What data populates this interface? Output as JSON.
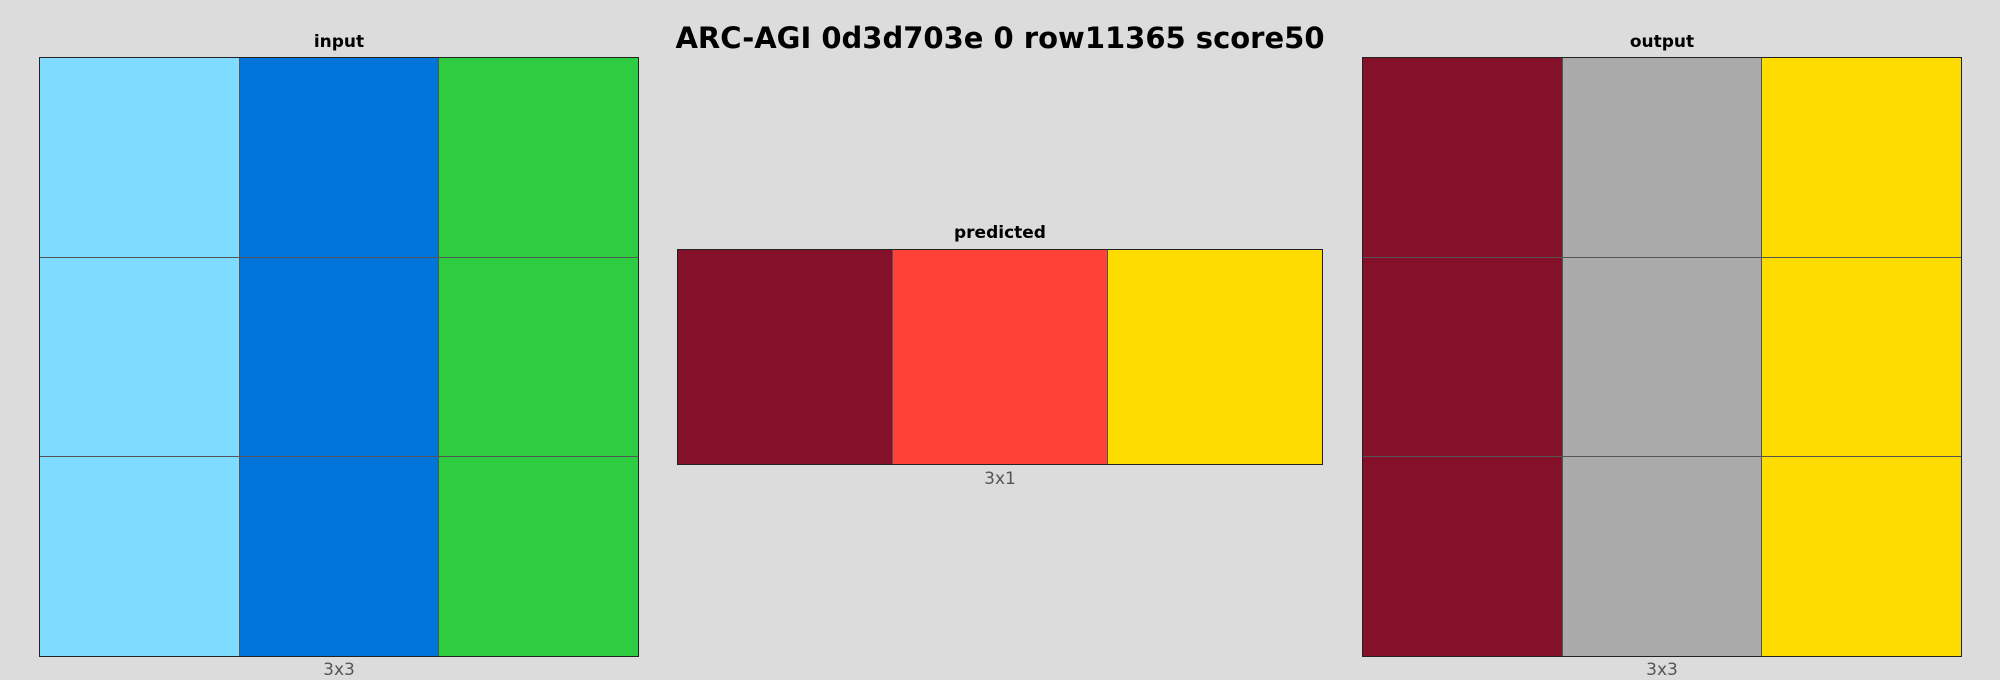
{
  "title": "ARC-AGI 0d3d703e 0 row11365 score50",
  "palette": {
    "light-blue": "#7fdbff",
    "blue": "#0074d9",
    "green": "#2ecc40",
    "maroon": "#85102a",
    "red": "#ff4136",
    "yellow": "#ffdc00",
    "gray": "#aaaaaa"
  },
  "panels": {
    "input": {
      "label": "input",
      "dims": "3x3",
      "rows": [
        [
          "light-blue",
          "blue",
          "green"
        ],
        [
          "light-blue",
          "blue",
          "green"
        ],
        [
          "light-blue",
          "blue",
          "green"
        ]
      ]
    },
    "predicted": {
      "label": "predicted",
      "dims": "3x1",
      "rows": [
        [
          "maroon",
          "red",
          "yellow"
        ]
      ]
    },
    "output": {
      "label": "output",
      "dims": "3x3",
      "rows": [
        [
          "maroon",
          "gray",
          "yellow"
        ],
        [
          "maroon",
          "gray",
          "yellow"
        ],
        [
          "maroon",
          "gray",
          "yellow"
        ]
      ]
    }
  }
}
